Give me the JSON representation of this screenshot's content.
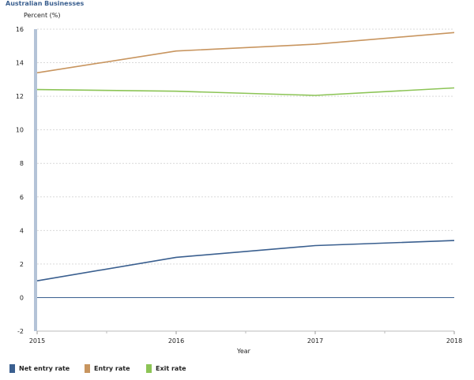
{
  "title": "Australian Businesses",
  "chart_data": {
    "type": "line",
    "title": "Australian Businesses",
    "ylabel": "Percent (%)",
    "xlabel": "Year",
    "x": [
      "2015",
      "2016",
      "2017",
      "2018"
    ],
    "ylim": [
      -2,
      16
    ],
    "yticks": [
      -2,
      0,
      2,
      4,
      6,
      8,
      10,
      12,
      14,
      16
    ],
    "grid": true,
    "legend_position": "bottom",
    "series": [
      {
        "name": "Net entry rate",
        "color": "#3a5f8f",
        "values": [
          1.0,
          2.4,
          3.1,
          3.4
        ]
      },
      {
        "name": "Entry rate",
        "color": "#c8955f",
        "values": [
          13.4,
          14.7,
          15.1,
          15.8
        ]
      },
      {
        "name": "Exit rate",
        "color": "#8cc456",
        "values": [
          12.4,
          12.3,
          12.05,
          12.5
        ]
      }
    ]
  },
  "legend": [
    {
      "label": "Net entry rate",
      "color": "#3a5f8f"
    },
    {
      "label": "Entry rate",
      "color": "#c8955f"
    },
    {
      "label": "Exit rate",
      "color": "#8cc456"
    }
  ]
}
